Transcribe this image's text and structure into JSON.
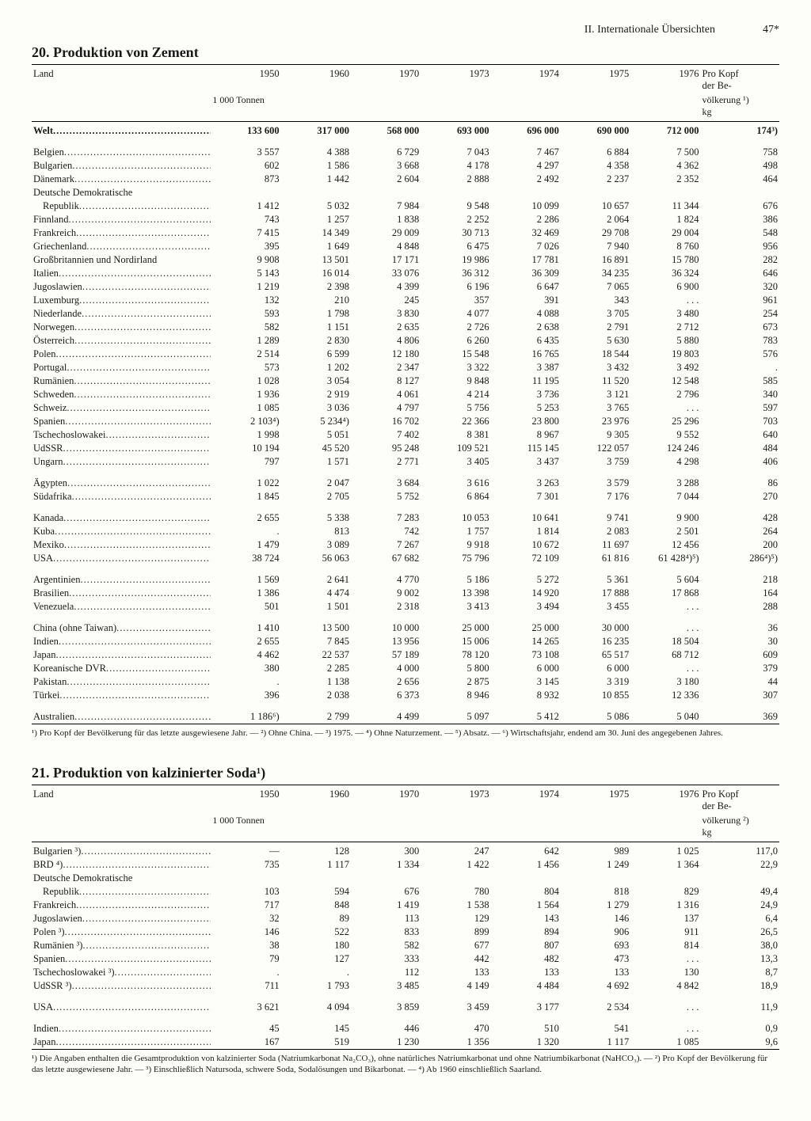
{
  "page_header": {
    "section": "II. Internationale Übersichten",
    "page": "47*"
  },
  "table20": {
    "title": "20. Produktion von Zement",
    "col_label": "Land",
    "years": [
      "1950",
      "1960",
      "1970",
      "1973",
      "1974",
      "1975",
      "1976"
    ],
    "unit": "1 000 Tonnen",
    "percap_head1": "Pro Kopf",
    "percap_head2": "der Be-",
    "percap_head3": "völkerung ¹)",
    "percap_head4": "kg",
    "groups": [
      {
        "rows": [
          {
            "label": "Welt",
            "bold": true,
            "v": [
              "133 600",
              "317 000",
              "568 000",
              "693 000",
              "696 000",
              "690 000",
              "712 000"
            ],
            "pk": "174³)"
          }
        ]
      },
      {
        "rows": [
          {
            "label": "Belgien",
            "v": [
              "3 557",
              "4 388",
              "6 729",
              "7 043",
              "7 467",
              "6 884",
              "7 500"
            ],
            "pk": "758"
          },
          {
            "label": "Bulgarien",
            "v": [
              "602",
              "1 586",
              "3 668",
              "4 178",
              "4 297",
              "4 358",
              "4 362"
            ],
            "pk": "498"
          },
          {
            "label": "Dänemark",
            "v": [
              "873",
              "1 442",
              "2 604",
              "2 888",
              "2 492",
              "2 237",
              "2 352"
            ],
            "pk": "464"
          },
          {
            "label": "Deutsche Demokratische",
            "nodots": true,
            "v": [
              "",
              "",
              "",
              "",
              "",
              "",
              ""
            ],
            "pk": ""
          },
          {
            "label": "Republik",
            "indent": true,
            "v": [
              "1 412",
              "5 032",
              "7 984",
              "9 548",
              "10 099",
              "10 657",
              "11 344"
            ],
            "pk": "676"
          },
          {
            "label": "Finnland",
            "v": [
              "743",
              "1 257",
              "1 838",
              "2 252",
              "2 286",
              "2 064",
              "1 824"
            ],
            "pk": "386"
          },
          {
            "label": "Frankreich",
            "v": [
              "7 415",
              "14 349",
              "29 009",
              "30 713",
              "32 469",
              "29 708",
              "29 004"
            ],
            "pk": "548"
          },
          {
            "label": "Griechenland",
            "v": [
              "395",
              "1 649",
              "4 848",
              "6 475",
              "7 026",
              "7 940",
              "8 760"
            ],
            "pk": "956"
          },
          {
            "label": "Großbritannien und Nordirland",
            "nodots": true,
            "v": [
              "9 908",
              "13 501",
              "17 171",
              "19 986",
              "17 781",
              "16 891",
              "15 780"
            ],
            "pk": "282"
          },
          {
            "label": "Italien",
            "v": [
              "5 143",
              "16 014",
              "33 076",
              "36 312",
              "36 309",
              "34 235",
              "36 324"
            ],
            "pk": "646"
          },
          {
            "label": "Jugoslawien",
            "v": [
              "1 219",
              "2 398",
              "4 399",
              "6 196",
              "6 647",
              "7 065",
              "6 900"
            ],
            "pk": "320"
          },
          {
            "label": "Luxemburg",
            "v": [
              "132",
              "210",
              "245",
              "357",
              "391",
              "343",
              ". . ."
            ],
            "pk": "961"
          },
          {
            "label": "Niederlande",
            "v": [
              "593",
              "1 798",
              "3 830",
              "4 077",
              "4 088",
              "3 705",
              "3 480"
            ],
            "pk": "254"
          },
          {
            "label": "Norwegen",
            "v": [
              "582",
              "1 151",
              "2 635",
              "2 726",
              "2 638",
              "2 791",
              "2 712"
            ],
            "pk": "673"
          },
          {
            "label": "Österreich",
            "v": [
              "1 289",
              "2 830",
              "4 806",
              "6 260",
              "6 435",
              "5 630",
              "5 880"
            ],
            "pk": "783"
          },
          {
            "label": "Polen",
            "v": [
              "2 514",
              "6 599",
              "12 180",
              "15 548",
              "16 765",
              "18 544",
              "19 803"
            ],
            "pk": "576"
          },
          {
            "label": "Portugal",
            "v": [
              "573",
              "1 202",
              "2 347",
              "3 322",
              "3 387",
              "3 432",
              "3 492"
            ],
            "pk": "."
          },
          {
            "label": "Rumänien",
            "v": [
              "1 028",
              "3 054",
              "8 127",
              "9 848",
              "11 195",
              "11 520",
              "12 548"
            ],
            "pk": "585"
          },
          {
            "label": "Schweden",
            "v": [
              "1 936",
              "2 919",
              "4 061",
              "4 214",
              "3 736",
              "3 121",
              "2 796"
            ],
            "pk": "340"
          },
          {
            "label": "Schweiz",
            "v": [
              "1 085",
              "3 036",
              "4 797",
              "5 756",
              "5 253",
              "3 765",
              ". . ."
            ],
            "pk": "597"
          },
          {
            "label": "Spanien",
            "v": [
              "2 103⁴)",
              "5 234⁴)",
              "16 702",
              "22 366",
              "23 800",
              "23 976",
              "25 296"
            ],
            "pk": "703"
          },
          {
            "label": "Tschechoslowakei",
            "v": [
              "1 998",
              "5 051",
              "7 402",
              "8 381",
              "8 967",
              "9 305",
              "9 552"
            ],
            "pk": "640"
          },
          {
            "label": "UdSSR",
            "v": [
              "10 194",
              "45 520",
              "95 248",
              "109 521",
              "115 145",
              "122 057",
              "124 246"
            ],
            "pk": "484"
          },
          {
            "label": "Ungarn",
            "v": [
              "797",
              "1 571",
              "2 771",
              "3 405",
              "3 437",
              "3 759",
              "4 298"
            ],
            "pk": "406"
          }
        ]
      },
      {
        "rows": [
          {
            "label": "Ägypten",
            "v": [
              "1 022",
              "2 047",
              "3 684",
              "3 616",
              "3 263",
              "3 579",
              "3 288"
            ],
            "pk": "86"
          },
          {
            "label": "Südafrika",
            "v": [
              "1 845",
              "2 705",
              "5 752",
              "6 864",
              "7 301",
              "7 176",
              "7 044"
            ],
            "pk": "270"
          }
        ]
      },
      {
        "rows": [
          {
            "label": "Kanada",
            "v": [
              "2 655",
              "5 338",
              "7 283",
              "10 053",
              "10 641",
              "9 741",
              "9 900"
            ],
            "pk": "428"
          },
          {
            "label": "Kuba",
            "v": [
              ".",
              "813",
              "742",
              "1 757",
              "1 814",
              "2 083",
              "2 501"
            ],
            "pk": "264"
          },
          {
            "label": "Mexiko",
            "v": [
              "1 479",
              "3 089",
              "7 267",
              "9 918",
              "10 672",
              "11 697",
              "12 456"
            ],
            "pk": "200"
          },
          {
            "label": "USA",
            "v": [
              "38 724",
              "56 063",
              "67 682",
              "75 796",
              "72 109",
              "61 816",
              "61 428⁴)⁵)"
            ],
            "pk": "286⁴)⁵)"
          }
        ]
      },
      {
        "rows": [
          {
            "label": "Argentinien",
            "v": [
              "1 569",
              "2 641",
              "4 770",
              "5 186",
              "5 272",
              "5 361",
              "5 604"
            ],
            "pk": "218"
          },
          {
            "label": "Brasilien",
            "v": [
              "1 386",
              "4 474",
              "9 002",
              "13 398",
              "14 920",
              "17 888",
              "17 868"
            ],
            "pk": "164"
          },
          {
            "label": "Venezuela",
            "v": [
              "501",
              "1 501",
              "2 318",
              "3 413",
              "3 494",
              "3 455",
              ". . ."
            ],
            "pk": "288"
          }
        ]
      },
      {
        "rows": [
          {
            "label": "China (ohne Taiwan)",
            "v": [
              "1 410",
              "13 500",
              "10 000",
              "25 000",
              "25 000",
              "30 000",
              ". . ."
            ],
            "pk": "36"
          },
          {
            "label": "Indien",
            "v": [
              "2 655",
              "7 845",
              "13 956",
              "15 006",
              "14 265",
              "16 235",
              "18 504"
            ],
            "pk": "30"
          },
          {
            "label": "Japan",
            "v": [
              "4 462",
              "22 537",
              "57 189",
              "78 120",
              "73 108",
              "65 517",
              "68 712"
            ],
            "pk": "609"
          },
          {
            "label": "Koreanische DVR",
            "v": [
              "380",
              "2 285",
              "4 000",
              "5 800",
              "6 000",
              "6 000",
              ". . ."
            ],
            "pk": "379"
          },
          {
            "label": "Pakistan",
            "v": [
              ".",
              "1 138",
              "2 656",
              "2 875",
              "3 145",
              "3 319",
              "3 180"
            ],
            "pk": "44"
          },
          {
            "label": "Türkei",
            "v": [
              "396",
              "2 038",
              "6 373",
              "8 946",
              "8 932",
              "10 855",
              "12 336"
            ],
            "pk": "307"
          }
        ]
      },
      {
        "rows": [
          {
            "label": "Australien",
            "v": [
              "1 186⁶)",
              "2 799",
              "4 499",
              "5 097",
              "5 412",
              "5 086",
              "5 040"
            ],
            "pk": "369"
          }
        ]
      }
    ],
    "footnote": "¹) Pro Kopf der Bevölkerung für das letzte ausgewiesene Jahr. — ²) Ohne China. — ³) 1975. — ⁴) Ohne Naturzement. — ⁵) Absatz. — ⁶) Wirtschaftsjahr, endend am 30. Juni des angegebenen Jahres."
  },
  "table21": {
    "title": "21. Produktion von kalzinierter Soda¹)",
    "col_label": "Land",
    "years": [
      "1950",
      "1960",
      "1970",
      "1973",
      "1974",
      "1975",
      "1976"
    ],
    "unit": "1 000 Tonnen",
    "percap_head1": "Pro Kopf",
    "percap_head2": "der Be-",
    "percap_head3": "völkerung ²)",
    "percap_head4": "kg",
    "groups": [
      {
        "rows": [
          {
            "label": "Bulgarien ³)",
            "v": [
              "—",
              "128",
              "300",
              "247",
              "642",
              "989",
              "1 025"
            ],
            "pk": "117,0"
          },
          {
            "label": "BRD ⁴)",
            "v": [
              "735",
              "1 117",
              "1 334",
              "1 422",
              "1 456",
              "1 249",
              "1 364"
            ],
            "pk": "22,9"
          },
          {
            "label": "Deutsche Demokratische",
            "nodots": true,
            "v": [
              "",
              "",
              "",
              "",
              "",
              "",
              ""
            ],
            "pk": ""
          },
          {
            "label": "Republik",
            "indent": true,
            "v": [
              "103",
              "594",
              "676",
              "780",
              "804",
              "818",
              "829"
            ],
            "pk": "49,4"
          },
          {
            "label": "Frankreich",
            "v": [
              "717",
              "848",
              "1 419",
              "1 538",
              "1 564",
              "1 279",
              "1 316"
            ],
            "pk": "24,9"
          },
          {
            "label": "Jugoslawien",
            "v": [
              "32",
              "89",
              "113",
              "129",
              "143",
              "146",
              "137"
            ],
            "pk": "6,4"
          },
          {
            "label": "Polen ³)",
            "v": [
              "146",
              "522",
              "833",
              "899",
              "894",
              "906",
              "911"
            ],
            "pk": "26,5"
          },
          {
            "label": "Rumänien ³)",
            "v": [
              "38",
              "180",
              "582",
              "677",
              "807",
              "693",
              "814"
            ],
            "pk": "38,0"
          },
          {
            "label": "Spanien",
            "v": [
              "79",
              "127",
              "333",
              "442",
              "482",
              "473",
              ". . ."
            ],
            "pk": "13,3"
          },
          {
            "label": "Tschechoslowakei ³)",
            "v": [
              ".",
              ".",
              "112",
              "133",
              "133",
              "133",
              "130"
            ],
            "pk": "8,7"
          },
          {
            "label": "UdSSR ³)",
            "v": [
              "711",
              "1 793",
              "3 485",
              "4 149",
              "4 484",
              "4 692",
              "4 842"
            ],
            "pk": "18,9"
          }
        ]
      },
      {
        "rows": [
          {
            "label": "USA",
            "v": [
              "3 621",
              "4 094",
              "3 859",
              "3 459",
              "3 177",
              "2 534",
              ". . ."
            ],
            "pk": "11,9"
          }
        ]
      },
      {
        "rows": [
          {
            "label": "Indien",
            "v": [
              "45",
              "145",
              "446",
              "470",
              "510",
              "541",
              ". . ."
            ],
            "pk": "0,9"
          },
          {
            "label": "Japan",
            "v": [
              "167",
              "519",
              "1 230",
              "1 356",
              "1 320",
              "1 117",
              "1 085"
            ],
            "pk": "9,6"
          }
        ]
      }
    ],
    "footnote": "¹) Die Angaben enthalten die Gesamtproduktion von kalzinierter Soda (Natriumkarbonat Na₂CO₃), ohne natürliches Natriumkarbonat und ohne Natriumbikarbonat (NaHCO₃). — ²) Pro Kopf der Bevölkerung für das letzte ausgewiesene Jahr. — ³) Einschließlich Natursoda, schwere Soda, Sodalösungen und Bikarbonat. — ⁴) Ab 1960 einschließlich Saarland."
  }
}
